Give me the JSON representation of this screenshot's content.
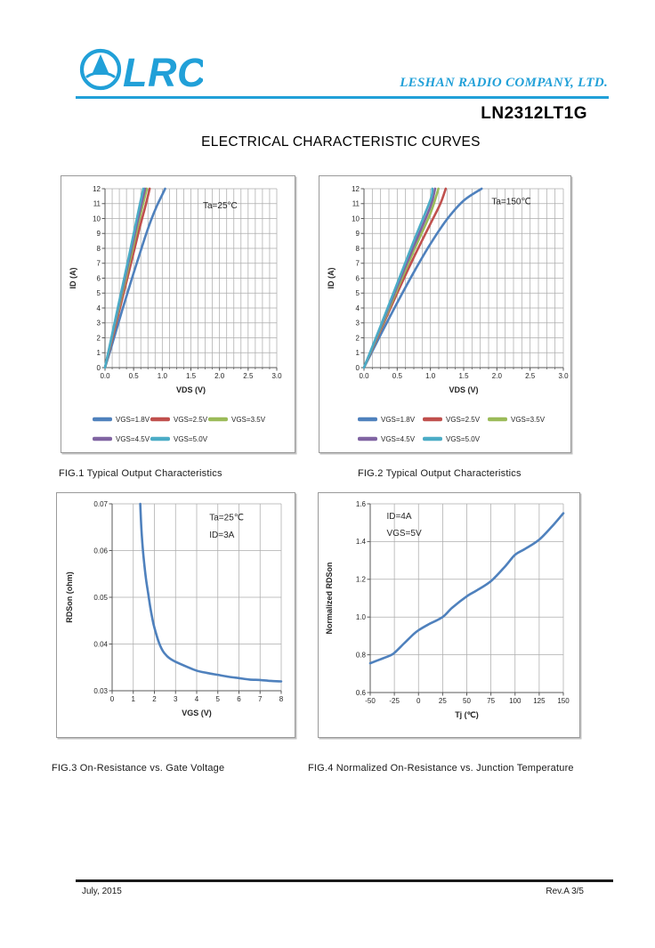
{
  "page": {
    "brand": {
      "logo_text": "LRC",
      "company": "LESHAN RADIO COMPANY, LTD.",
      "accent_color": "#21A0D8"
    },
    "part_number": "LN2312LT1G",
    "title": "ELECTRICAL CHARACTERISTIC CURVES",
    "footer": {
      "date": "July, 2015",
      "revision": "Rev.A 3/5"
    }
  },
  "chart_data": [
    {
      "id": "fig1",
      "type": "line",
      "caption": "FIG.1 Typical Output Characteristics",
      "xlabel": "VDS (V)",
      "ylabel": "ID (A)",
      "xlim": [
        0,
        3.0
      ],
      "ylim": [
        0,
        12
      ],
      "xticks": [
        0,
        0.5,
        1.0,
        1.5,
        2.0,
        2.5,
        3.0
      ],
      "xtick_labels": [
        "0.0",
        "0.5",
        "1.0",
        "1.5",
        "2.0",
        "2.5",
        "3.0"
      ],
      "yticks": [
        0,
        1,
        2,
        3,
        4,
        5,
        6,
        7,
        8,
        9,
        10,
        11,
        12
      ],
      "ytick_labels": [
        "0",
        "1",
        "2",
        "3",
        "4",
        "5",
        "6",
        "7",
        "8",
        "9",
        "10",
        "11",
        "12"
      ],
      "xgrid_step": 0.125,
      "ygrid_step": 1,
      "grid": true,
      "legend_position": "bottom",
      "annotations": [
        {
          "text": "Ta=25°C",
          "x": 1.71,
          "y": 10.7
        }
      ],
      "series": [
        {
          "name": "VGS=1.8V",
          "color": "#4F81BD",
          "points": [
            [
              0,
              0
            ],
            [
              0.1,
              1.25
            ],
            [
              0.2,
              2.55
            ],
            [
              0.3,
              3.85
            ],
            [
              0.4,
              5.1
            ],
            [
              0.5,
              6.35
            ],
            [
              0.6,
              7.55
            ],
            [
              0.7,
              8.75
            ],
            [
              0.8,
              9.85
            ],
            [
              0.9,
              10.8
            ],
            [
              1.0,
              11.6
            ],
            [
              1.05,
              12
            ]
          ]
        },
        {
          "name": "VGS=2.5V",
          "color": "#C0504D",
          "points": [
            [
              0,
              0
            ],
            [
              0.2,
              3.05
            ],
            [
              0.4,
              6.15
            ],
            [
              0.6,
              9.3
            ],
            [
              0.7,
              10.75
            ],
            [
              0.78,
              12
            ]
          ]
        },
        {
          "name": "VGS=3.5V",
          "color": "#9BBB59",
          "points": [
            [
              0,
              0
            ],
            [
              0.2,
              3.3
            ],
            [
              0.4,
              6.6
            ],
            [
              0.6,
              9.95
            ],
            [
              0.73,
              12
            ]
          ]
        },
        {
          "name": "VGS=4.5V",
          "color": "#8064A2",
          "points": [
            [
              0,
              0
            ],
            [
              0.2,
              3.45
            ],
            [
              0.4,
              6.9
            ],
            [
              0.6,
              10.35
            ],
            [
              0.7,
              12
            ]
          ]
        },
        {
          "name": "VGS=5.0V",
          "color": "#4BACC6",
          "points": [
            [
              0,
              0
            ],
            [
              0.2,
              3.6
            ],
            [
              0.4,
              7.15
            ],
            [
              0.6,
              10.8
            ],
            [
              0.67,
              12
            ]
          ]
        }
      ]
    },
    {
      "id": "fig2",
      "type": "line",
      "caption": "FIG.2 Typical Output Characteristics",
      "xlabel": "VDS (V)",
      "ylabel": "ID (A)",
      "xlim": [
        0,
        3.0
      ],
      "ylim": [
        0,
        12
      ],
      "xticks": [
        0,
        0.5,
        1.0,
        1.5,
        2.0,
        2.5,
        3.0
      ],
      "xtick_labels": [
        "0.0",
        "0.5",
        "1.0",
        "1.5",
        "2.0",
        "2.5",
        "3.0"
      ],
      "yticks": [
        0,
        1,
        2,
        3,
        4,
        5,
        6,
        7,
        8,
        9,
        10,
        11,
        12
      ],
      "ytick_labels": [
        "0",
        "1",
        "2",
        "3",
        "4",
        "5",
        "6",
        "7",
        "8",
        "9",
        "10",
        "11",
        "12"
      ],
      "xgrid_step": 0.125,
      "ygrid_step": 1,
      "grid": true,
      "legend_position": "bottom",
      "annotations": [
        {
          "text": "Ta=150℃",
          "x": 1.92,
          "y": 10.95
        }
      ],
      "series": [
        {
          "name": "VGS=1.8V",
          "color": "#4F81BD",
          "points": [
            [
              0,
              0
            ],
            [
              0.25,
              2.2
            ],
            [
              0.5,
              4.35
            ],
            [
              0.75,
              6.4
            ],
            [
              1.0,
              8.3
            ],
            [
              1.25,
              9.95
            ],
            [
              1.5,
              11.2
            ],
            [
              1.77,
              12
            ]
          ]
        },
        {
          "name": "VGS=2.5V",
          "color": "#C0504D",
          "points": [
            [
              0,
              0
            ],
            [
              0.25,
              2.5
            ],
            [
              0.5,
              5.0
            ],
            [
              0.75,
              7.4
            ],
            [
              1.0,
              9.65
            ],
            [
              1.15,
              11.0
            ],
            [
              1.23,
              12
            ]
          ]
        },
        {
          "name": "VGS=3.5V",
          "color": "#9BBB59",
          "points": [
            [
              0,
              0
            ],
            [
              0.25,
              2.6
            ],
            [
              0.5,
              5.25
            ],
            [
              0.75,
              7.85
            ],
            [
              1.0,
              10.35
            ],
            [
              1.12,
              12
            ]
          ]
        },
        {
          "name": "VGS=4.5V",
          "color": "#8064A2",
          "points": [
            [
              0,
              0
            ],
            [
              0.25,
              2.7
            ],
            [
              0.5,
              5.45
            ],
            [
              0.75,
              8.15
            ],
            [
              1.0,
              10.8
            ],
            [
              1.07,
              12
            ]
          ]
        },
        {
          "name": "VGS=5.0V",
          "color": "#4BACC6",
          "points": [
            [
              0,
              0
            ],
            [
              0.25,
              2.8
            ],
            [
              0.5,
              5.65
            ],
            [
              0.75,
              8.5
            ],
            [
              1.0,
              11.25
            ],
            [
              1.03,
              12
            ]
          ]
        }
      ]
    },
    {
      "id": "fig3",
      "type": "line",
      "caption": "FIG.3 On-Resistance vs. Gate Voltage",
      "xlabel": "VGS (V)",
      "ylabel": "RDSon (ohm)",
      "xlim": [
        0,
        8
      ],
      "ylim": [
        0.03,
        0.07
      ],
      "xticks": [
        0,
        1,
        2,
        3,
        4,
        5,
        6,
        7,
        8
      ],
      "xtick_labels": [
        "0",
        "1",
        "2",
        "3",
        "4",
        "5",
        "6",
        "7",
        "8"
      ],
      "yticks": [
        0.03,
        0.04,
        0.05,
        0.06,
        0.07
      ],
      "ytick_labels": [
        "0.03",
        "0.04",
        "0.05",
        "0.06",
        "0.07"
      ],
      "xgrid_step": 1,
      "ygrid_step": 0.01,
      "grid": true,
      "legend_position": "none",
      "annotations": [
        {
          "text": "Ta=25℃",
          "x": 4.6,
          "y": 0.0665
        },
        {
          "text": "ID=3A",
          "x": 4.6,
          "y": 0.0628
        }
      ],
      "series": [
        {
          "name": "RDSon",
          "color": "#4F81BD",
          "points": [
            [
              1.33,
              0.07
            ],
            [
              1.38,
              0.065
            ],
            [
              1.44,
              0.061
            ],
            [
              1.5,
              0.058
            ],
            [
              1.6,
              0.054
            ],
            [
              1.7,
              0.051
            ],
            [
              1.8,
              0.048
            ],
            [
              1.9,
              0.0455
            ],
            [
              2.0,
              0.0435
            ],
            [
              2.2,
              0.0405
            ],
            [
              2.4,
              0.0385
            ],
            [
              2.6,
              0.0374
            ],
            [
              2.8,
              0.0367
            ],
            [
              3.0,
              0.0362
            ],
            [
              3.5,
              0.0352
            ],
            [
              4.0,
              0.0343
            ],
            [
              4.5,
              0.0338
            ],
            [
              5.0,
              0.0334
            ],
            [
              5.5,
              0.033
            ],
            [
              6.0,
              0.0327
            ],
            [
              6.5,
              0.0324
            ],
            [
              7.0,
              0.0323
            ],
            [
              7.5,
              0.0321
            ],
            [
              8.0,
              0.032
            ]
          ]
        }
      ]
    },
    {
      "id": "fig4",
      "type": "line",
      "caption": "FIG.4 Normalized On-Resistance vs. Junction Temperature",
      "xlabel": "Tj (℃)",
      "ylabel": "Normalized RDSon",
      "xlim": [
        -50,
        150
      ],
      "ylim": [
        0.6,
        1.6
      ],
      "xticks": [
        -50,
        -25,
        0,
        25,
        50,
        75,
        100,
        125,
        150
      ],
      "xtick_labels": [
        "-50",
        "-25",
        "0",
        "25",
        "50",
        "75",
        "100",
        "125",
        "150"
      ],
      "yticks": [
        0.6,
        0.8,
        1.0,
        1.2,
        1.4,
        1.6
      ],
      "ytick_labels": [
        "0.6",
        "0.8",
        "1.0",
        "1.2",
        "1.4",
        "1.6"
      ],
      "xgrid_step": 25,
      "ygrid_step": 0.2,
      "grid": true,
      "legend_position": "none",
      "annotations": [
        {
          "text": "ID=4A",
          "x": -33,
          "y": 1.52
        },
        {
          "text": "VGS=5V",
          "x": -33,
          "y": 1.43
        }
      ],
      "series": [
        {
          "name": "Normalized RDSon",
          "color": "#4F81BD",
          "points": [
            [
              -50,
              0.755
            ],
            [
              -40,
              0.775
            ],
            [
              -30,
              0.795
            ],
            [
              -25,
              0.81
            ],
            [
              -15,
              0.86
            ],
            [
              -5,
              0.91
            ],
            [
              0,
              0.93
            ],
            [
              10,
              0.96
            ],
            [
              25,
              1.0
            ],
            [
              35,
              1.05
            ],
            [
              50,
              1.11
            ],
            [
              60,
              1.14
            ],
            [
              75,
              1.19
            ],
            [
              90,
              1.27
            ],
            [
              100,
              1.33
            ],
            [
              110,
              1.36
            ],
            [
              125,
              1.41
            ],
            [
              140,
              1.49
            ],
            [
              150,
              1.55
            ]
          ]
        }
      ]
    }
  ]
}
